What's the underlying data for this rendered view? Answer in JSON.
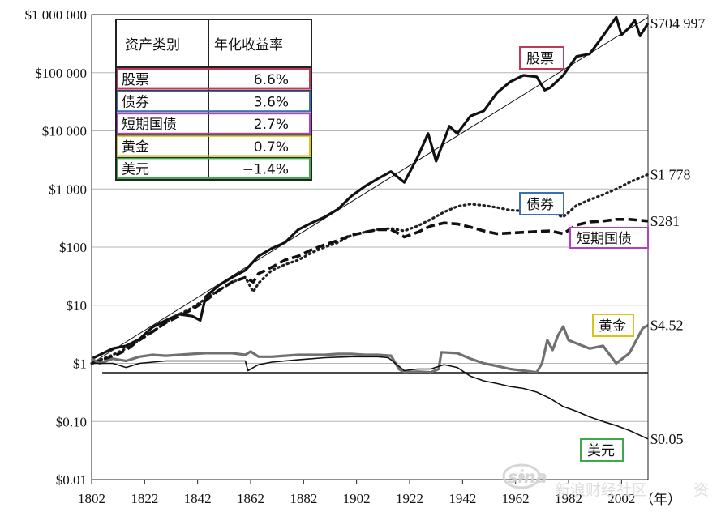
{
  "chart_data": {
    "type": "line",
    "y_scale": "log",
    "ylim": [
      0.01,
      1000000
    ],
    "xlim": [
      1802,
      2012
    ],
    "grid": true,
    "x_ticks": [
      "1802",
      "1822",
      "1842",
      "1862",
      "1882",
      "1902",
      "1922",
      "1942",
      "1962",
      "1982",
      "2002"
    ],
    "x_unit": "（年）",
    "y_ticks": [
      {
        "value": 1000000,
        "label": "$1 000 000"
      },
      {
        "value": 100000,
        "label": "$100 000"
      },
      {
        "value": 10000,
        "label": "$10 000"
      },
      {
        "value": 1000,
        "label": "$1 000"
      },
      {
        "value": 100,
        "label": "$100"
      },
      {
        "value": 10,
        "label": "$10"
      },
      {
        "value": 1,
        "label": "$1"
      },
      {
        "value": 0.1,
        "label": "$0.10"
      },
      {
        "value": 0.01,
        "label": "$0.01"
      }
    ],
    "table": {
      "headers": [
        "资产类别",
        "年化收益率"
      ],
      "rows": [
        {
          "asset": "股票",
          "rate": "6.6%",
          "color": "#c0395a"
        },
        {
          "asset": "债券",
          "rate": "3.6%",
          "color": "#3b6fb6"
        },
        {
          "asset": "短期国债",
          "rate": "2.7%",
          "color": "#b23fc6"
        },
        {
          "asset": "黄金",
          "rate": "0.7%",
          "color": "#d9c21a"
        },
        {
          "asset": "美元",
          "rate": "−1.4%",
          "color": "#3ea84a"
        }
      ]
    },
    "series": [
      {
        "name": "股票",
        "end_label": "$704 997",
        "style": "thick",
        "color": "#111111",
        "box_color": "#c0395a",
        "x": [
          1802,
          1810,
          1815,
          1820,
          1825,
          1830,
          1835,
          1840,
          1843,
          1845,
          1850,
          1855,
          1860,
          1865,
          1870,
          1875,
          1880,
          1885,
          1890,
          1895,
          1900,
          1905,
          1910,
          1915,
          1920,
          1925,
          1929,
          1932,
          1937,
          1940,
          1945,
          1950,
          1955,
          1960,
          1965,
          1970,
          1973,
          1975,
          1980,
          1985,
          1990,
          1995,
          2000,
          2002,
          2005,
          2007,
          2009,
          2012
        ],
        "values": [
          1.2,
          1.8,
          2.0,
          2.6,
          4.2,
          5.5,
          7.0,
          6.5,
          5.5,
          14,
          22,
          30,
          40,
          70,
          95,
          120,
          200,
          260,
          330,
          450,
          750,
          1100,
          1500,
          2000,
          1300,
          3500,
          9000,
          3000,
          12000,
          9000,
          18000,
          22000,
          45000,
          70000,
          90000,
          85000,
          50000,
          55000,
          90000,
          190000,
          210000,
          430000,
          900000,
          450000,
          600000,
          800000,
          430000,
          704997
        ]
      },
      {
        "name": "债券",
        "end_label": "$1 778",
        "style": "dotted",
        "color": "#222222",
        "box_color": "#3b6fb6",
        "x": [
          1802,
          1810,
          1815,
          1820,
          1825,
          1830,
          1835,
          1840,
          1845,
          1850,
          1855,
          1860,
          1863,
          1865,
          1870,
          1875,
          1880,
          1885,
          1890,
          1895,
          1900,
          1905,
          1910,
          1915,
          1920,
          1925,
          1930,
          1935,
          1940,
          1945,
          1950,
          1955,
          1960,
          1965,
          1970,
          1975,
          1980,
          1985,
          1990,
          1995,
          2000,
          2005,
          2012
        ],
        "values": [
          1.0,
          1.4,
          1.8,
          2.5,
          3.5,
          5.0,
          7.0,
          9.0,
          13,
          18,
          25,
          30,
          17,
          24,
          40,
          50,
          60,
          80,
          100,
          120,
          160,
          180,
          200,
          210,
          190,
          230,
          300,
          400,
          500,
          550,
          520,
          480,
          430,
          420,
          380,
          400,
          330,
          520,
          650,
          800,
          1000,
          1300,
          1778
        ]
      },
      {
        "name": "短期国债",
        "end_label": "$281",
        "style": "dashed",
        "color": "#111111",
        "box_color": "#b23fc6",
        "x": [
          1802,
          1810,
          1815,
          1820,
          1825,
          1830,
          1835,
          1840,
          1845,
          1850,
          1855,
          1860,
          1863,
          1865,
          1870,
          1875,
          1880,
          1885,
          1890,
          1895,
          1900,
          1905,
          1910,
          1915,
          1918,
          1920,
          1925,
          1930,
          1935,
          1940,
          1945,
          1950,
          1955,
          1960,
          1965,
          1970,
          1975,
          1980,
          1985,
          1990,
          1995,
          2000,
          2005,
          2012
        ],
        "values": [
          1.0,
          1.3,
          1.7,
          2.5,
          3.5,
          5.0,
          6.5,
          8.5,
          12,
          18,
          25,
          30,
          25,
          35,
          45,
          60,
          70,
          90,
          110,
          130,
          160,
          180,
          200,
          200,
          170,
          150,
          180,
          230,
          260,
          250,
          220,
          190,
          170,
          175,
          180,
          185,
          190,
          170,
          240,
          270,
          280,
          300,
          300,
          281
        ]
      },
      {
        "name": "黄金",
        "end_label": "$4.52",
        "style": "gray",
        "color": "#707070",
        "box_color": "#d9c21a",
        "x": [
          1802,
          1805,
          1810,
          1815,
          1820,
          1825,
          1830,
          1835,
          1840,
          1845,
          1850,
          1855,
          1860,
          1862,
          1865,
          1870,
          1875,
          1880,
          1885,
          1890,
          1895,
          1900,
          1905,
          1910,
          1915,
          1918,
          1920,
          1925,
          1930,
          1933,
          1934,
          1940,
          1945,
          1950,
          1955,
          1960,
          1965,
          1970,
          1972,
          1974,
          1976,
          1978,
          1980,
          1982,
          1985,
          1990,
          1995,
          2000,
          2005,
          2010,
          2012
        ],
        "values": [
          1.2,
          1.0,
          1.2,
          1.1,
          1.3,
          1.4,
          1.35,
          1.4,
          1.45,
          1.5,
          1.5,
          1.5,
          1.4,
          1.6,
          1.3,
          1.3,
          1.35,
          1.4,
          1.4,
          1.4,
          1.45,
          1.45,
          1.4,
          1.4,
          1.35,
          0.8,
          0.7,
          0.72,
          0.7,
          0.8,
          1.55,
          1.5,
          1.2,
          1.0,
          0.9,
          0.8,
          0.75,
          0.7,
          1.0,
          2.5,
          1.7,
          3.0,
          4.3,
          2.5,
          2.2,
          1.8,
          2.0,
          1.0,
          1.5,
          4.0,
          4.52
        ]
      },
      {
        "name": "美元",
        "end_label": "$0.05",
        "style": "thin",
        "color": "#111111",
        "box_color": "#3ea84a",
        "x": [
          1802,
          1810,
          1815,
          1820,
          1830,
          1840,
          1850,
          1860,
          1861,
          1865,
          1870,
          1880,
          1890,
          1900,
          1910,
          1914,
          1920,
          1925,
          1930,
          1935,
          1940,
          1945,
          1950,
          1955,
          1960,
          1965,
          1970,
          1975,
          1980,
          1985,
          1990,
          1995,
          2000,
          2005,
          2012
        ],
        "values": [
          1.0,
          1.0,
          0.85,
          1.0,
          1.1,
          1.1,
          1.1,
          1.1,
          0.75,
          0.95,
          1.05,
          1.15,
          1.25,
          1.3,
          1.3,
          1.25,
          0.75,
          0.8,
          0.8,
          0.95,
          0.85,
          0.6,
          0.5,
          0.45,
          0.4,
          0.37,
          0.32,
          0.25,
          0.18,
          0.15,
          0.12,
          0.1,
          0.085,
          0.07,
          0.05
        ]
      }
    ],
    "reference_lines": [
      {
        "kind": "trend",
        "x": [
          1802,
          2012
        ],
        "values": [
          1.0,
          900000
        ]
      },
      {
        "kind": "flat",
        "x": [
          1806,
          2012
        ],
        "values": [
          0.68,
          0.68
        ]
      }
    ]
  },
  "watermark": {
    "logo": "sina",
    "text": "新浪财经社区",
    "mark": "资"
  }
}
